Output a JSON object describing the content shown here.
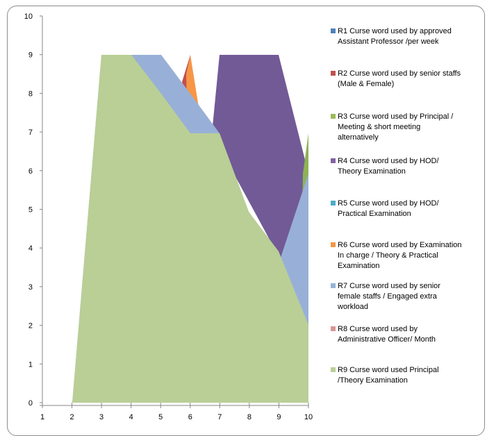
{
  "chart_data": {
    "type": "area",
    "title": "",
    "xlabel": "",
    "ylabel": "",
    "x": [
      1,
      2,
      3,
      4,
      5,
      6,
      7,
      8,
      9,
      10
    ],
    "xlim": [
      1,
      10
    ],
    "ylim": [
      0,
      10
    ],
    "y_ticks": [
      0,
      1,
      2,
      3,
      4,
      5,
      6,
      7,
      8,
      9,
      10
    ],
    "x_ticks": [
      1,
      2,
      3,
      4,
      5,
      6,
      7,
      8,
      9,
      10
    ],
    "grid": false,
    "legend_position": "right",
    "series": [
      {
        "name": "R1 Curse word used by approved Assistant Professor  /per week",
        "color": "#4f81bd",
        "values": [
          0,
          0,
          0,
          0,
          0,
          0,
          0,
          0,
          0,
          0
        ]
      },
      {
        "name": "R2 Curse word used by senior staffs (Male  & Female)",
        "color": "#c0504d",
        "values": [
          0,
          0,
          0,
          0,
          0,
          9,
          0,
          0,
          0,
          0
        ]
      },
      {
        "name": "R3 Curse word used by Principal / Meeting & short meeting alternatively",
        "color": "#9bbb59",
        "values": [
          0,
          0,
          0,
          0,
          0,
          0,
          0,
          0,
          0,
          7
        ]
      },
      {
        "name": "R4 Curse word used  by HOD/ Theory Examination",
        "color": "#8064a2",
        "values": [
          0,
          0,
          0,
          0,
          0,
          0,
          9,
          9,
          9,
          5
        ]
      },
      {
        "name": "R5 Curse word used  by HOD/ Practical Examination",
        "color": "#4bacc6",
        "values": [
          0,
          0,
          0,
          0,
          0,
          0,
          0,
          0,
          0,
          0
        ]
      },
      {
        "name": "R6 Curse word used by Examination In charge  / Theory & Practical Examination",
        "color": "#f79646",
        "values": [
          0,
          0,
          0,
          0,
          0,
          9,
          0,
          0,
          0,
          0
        ]
      },
      {
        "name": "R7 Curse word used by senior female staffs  / Engaged extra workload",
        "color": "#95b3d7",
        "values": [
          0,
          0,
          9,
          9,
          9,
          8,
          7,
          5,
          3,
          6
        ]
      },
      {
        "name": "R8 Curse word used  by Administrative Officer/ Month",
        "color": "#d99694",
        "values": [
          0,
          0,
          0,
          0,
          0,
          0,
          0,
          0,
          0,
          0
        ]
      },
      {
        "name": "R9 Curse word  used Principal /Theory Examination",
        "color": "#b9cf96",
        "values": [
          0,
          0,
          9,
          9,
          8,
          7,
          7,
          5,
          4,
          2
        ]
      }
    ]
  },
  "legend": [
    {
      "lines": [
        "R1 Curse word used by approved",
        "Assistant Professor  /per week"
      ],
      "color": "#4f81bd"
    },
    {
      "lines": [
        "R2 Curse word used by senior staffs",
        "(Male  & Female)"
      ],
      "color": "#c0504d"
    },
    {
      "lines": [
        "R3 Curse word used by Principal /",
        "Meeting & short meeting",
        "alternatively"
      ],
      "color": "#9bbb59"
    },
    {
      "lines": [
        "R4 Curse word used  by HOD/",
        "Theory Examination"
      ],
      "color": "#8064a2"
    },
    {
      "lines": [
        "R5 Curse word used  by HOD/",
        "Practical Examination"
      ],
      "color": "#4bacc6"
    },
    {
      "lines": [
        "R6 Curse word used by Examination",
        "In charge  / Theory & Practical",
        "Examination"
      ],
      "color": "#f79646"
    },
    {
      "lines": [
        "R7 Curse word used by senior",
        "female staffs  / Engaged extra",
        "workload"
      ],
      "color": "#95b3d7"
    },
    {
      "lines": [
        "R8 Curse word used  by",
        "Administrative Officer/ Month"
      ],
      "color": "#d99694"
    },
    {
      "lines": [
        "R9 Curse word  used Principal",
        "/Theory Examination"
      ],
      "color": "#b9cf96"
    }
  ]
}
